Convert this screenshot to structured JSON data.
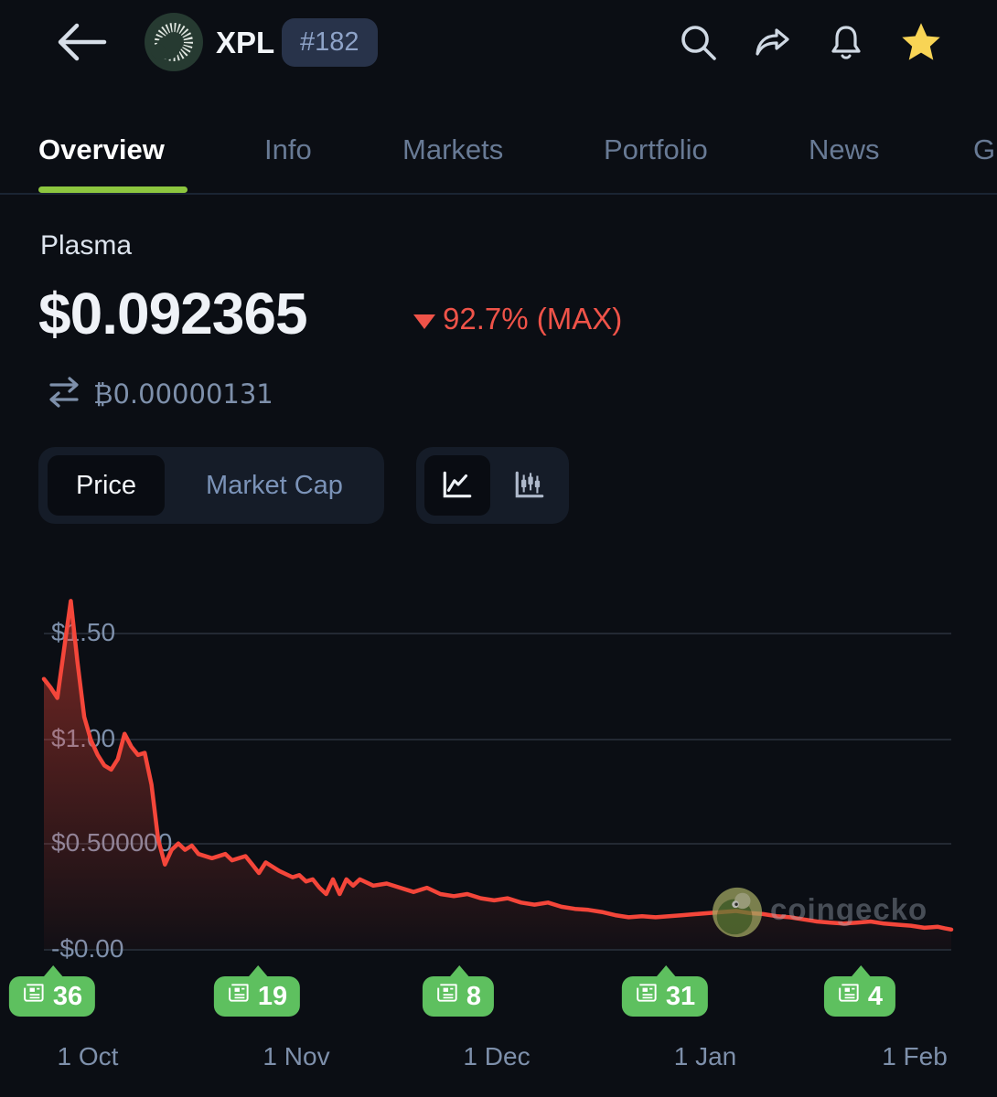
{
  "header": {
    "coin_symbol": "XPL",
    "rank": "#182"
  },
  "tabs": [
    {
      "label": "Overview",
      "active": true
    },
    {
      "label": "Info",
      "active": false
    },
    {
      "label": "Markets",
      "active": false
    },
    {
      "label": "Portfolio",
      "active": false
    },
    {
      "label": "News",
      "active": false
    },
    {
      "label": "G",
      "active": false
    }
  ],
  "price_section": {
    "coin_name": "Plasma",
    "price": "$0.092365",
    "change_percent": "92.7% (MAX)",
    "change_direction": "down",
    "btc_equivalent": "₿0.00000131"
  },
  "controls": {
    "metric_toggle": {
      "options": [
        "Price",
        "Market Cap"
      ],
      "selected": "Price"
    },
    "chart_type_toggle": {
      "options": [
        "line-chart",
        "candlestick-chart"
      ],
      "selected": "line-chart"
    }
  },
  "watermark": {
    "text": "coingecko"
  },
  "colors": {
    "background": "#0b0e14",
    "accent_green_underline": "#8dc63f",
    "news_badge_green": "#5ec05f",
    "negative_red": "#ef5349",
    "chart_line_red": "#f4463a",
    "axis_label": "#7e90ab",
    "favorite_star_yellow": "#f8d455"
  },
  "chart_data": {
    "type": "area",
    "series_name": "XPL price, USD",
    "line_color": "#f4463a",
    "fill_top": "rgba(244,70,54,0.50)",
    "fill_bottom": "rgba(244,70,54,0.03)",
    "grid": true,
    "legend": "none",
    "ylim": [
      0,
      1.75
    ],
    "y_ticks": [
      "$1.50",
      "$1.00",
      "$0.500000",
      "-$0.00"
    ],
    "y_tick_values": [
      1.5,
      1.0,
      0.5,
      0.0
    ],
    "x_ticks": [
      "1 Oct",
      "1 Nov",
      "1 Dec",
      "1 Jan",
      "1 Feb"
    ],
    "news_counts": [
      36,
      19,
      8,
      31,
      4
    ],
    "points": [
      [
        "2025-09-24",
        1.28
      ],
      [
        "2025-09-25",
        1.24
      ],
      [
        "2025-09-26",
        1.19
      ],
      [
        "2025-09-27",
        1.42
      ],
      [
        "2025-09-28",
        1.65
      ],
      [
        "2025-09-29",
        1.36
      ],
      [
        "2025-09-30",
        1.1
      ],
      [
        "2025-10-01",
        0.99
      ],
      [
        "2025-10-02",
        0.92
      ],
      [
        "2025-10-03",
        0.87
      ],
      [
        "2025-10-04",
        0.85
      ],
      [
        "2025-10-05",
        0.9
      ],
      [
        "2025-10-06",
        1.02
      ],
      [
        "2025-10-07",
        0.96
      ],
      [
        "2025-10-08",
        0.92
      ],
      [
        "2025-10-09",
        0.93
      ],
      [
        "2025-10-10",
        0.78
      ],
      [
        "2025-10-11",
        0.52
      ],
      [
        "2025-10-12",
        0.4
      ],
      [
        "2025-10-13",
        0.47
      ],
      [
        "2025-10-14",
        0.5
      ],
      [
        "2025-10-15",
        0.47
      ],
      [
        "2025-10-16",
        0.49
      ],
      [
        "2025-10-17",
        0.45
      ],
      [
        "2025-10-19",
        0.43
      ],
      [
        "2025-10-21",
        0.45
      ],
      [
        "2025-10-22",
        0.42
      ],
      [
        "2025-10-24",
        0.44
      ],
      [
        "2025-10-25",
        0.4
      ],
      [
        "2025-10-26",
        0.36
      ],
      [
        "2025-10-27",
        0.41
      ],
      [
        "2025-10-28",
        0.39
      ],
      [
        "2025-10-29",
        0.37
      ],
      [
        "2025-10-31",
        0.34
      ],
      [
        "2025-11-01",
        0.35
      ],
      [
        "2025-11-02",
        0.32
      ],
      [
        "2025-11-03",
        0.33
      ],
      [
        "2025-11-04",
        0.29
      ],
      [
        "2025-11-05",
        0.26
      ],
      [
        "2025-11-06",
        0.33
      ],
      [
        "2025-11-07",
        0.26
      ],
      [
        "2025-11-08",
        0.33
      ],
      [
        "2025-11-09",
        0.3
      ],
      [
        "2025-11-10",
        0.33
      ],
      [
        "2025-11-12",
        0.3
      ],
      [
        "2025-11-14",
        0.31
      ],
      [
        "2025-11-16",
        0.29
      ],
      [
        "2025-11-18",
        0.27
      ],
      [
        "2025-11-20",
        0.29
      ],
      [
        "2025-11-22",
        0.26
      ],
      [
        "2025-11-24",
        0.25
      ],
      [
        "2025-11-26",
        0.26
      ],
      [
        "2025-11-28",
        0.24
      ],
      [
        "2025-11-30",
        0.23
      ],
      [
        "2025-12-02",
        0.24
      ],
      [
        "2025-12-04",
        0.22
      ],
      [
        "2025-12-06",
        0.21
      ],
      [
        "2025-12-08",
        0.22
      ],
      [
        "2025-12-10",
        0.2
      ],
      [
        "2025-12-12",
        0.19
      ],
      [
        "2025-12-14",
        0.185
      ],
      [
        "2025-12-16",
        0.175
      ],
      [
        "2025-12-18",
        0.16
      ],
      [
        "2025-12-20",
        0.15
      ],
      [
        "2025-12-22",
        0.155
      ],
      [
        "2025-12-24",
        0.15
      ],
      [
        "2025-12-26",
        0.155
      ],
      [
        "2025-12-28",
        0.16
      ],
      [
        "2025-12-30",
        0.165
      ],
      [
        "2026-01-01",
        0.17
      ],
      [
        "2026-01-03",
        0.175
      ],
      [
        "2026-01-05",
        0.18
      ],
      [
        "2026-01-07",
        0.17
      ],
      [
        "2026-01-09",
        0.165
      ],
      [
        "2026-01-11",
        0.155
      ],
      [
        "2026-01-13",
        0.15
      ],
      [
        "2026-01-15",
        0.14
      ],
      [
        "2026-01-17",
        0.13
      ],
      [
        "2026-01-19",
        0.125
      ],
      [
        "2026-01-21",
        0.12
      ],
      [
        "2026-01-23",
        0.125
      ],
      [
        "2026-01-25",
        0.13
      ],
      [
        "2026-01-27",
        0.12
      ],
      [
        "2026-01-29",
        0.115
      ],
      [
        "2026-01-31",
        0.11
      ],
      [
        "2026-02-02",
        0.1
      ],
      [
        "2026-02-04",
        0.105
      ],
      [
        "2026-02-05",
        0.098
      ],
      [
        "2026-02-06",
        0.092
      ]
    ]
  }
}
